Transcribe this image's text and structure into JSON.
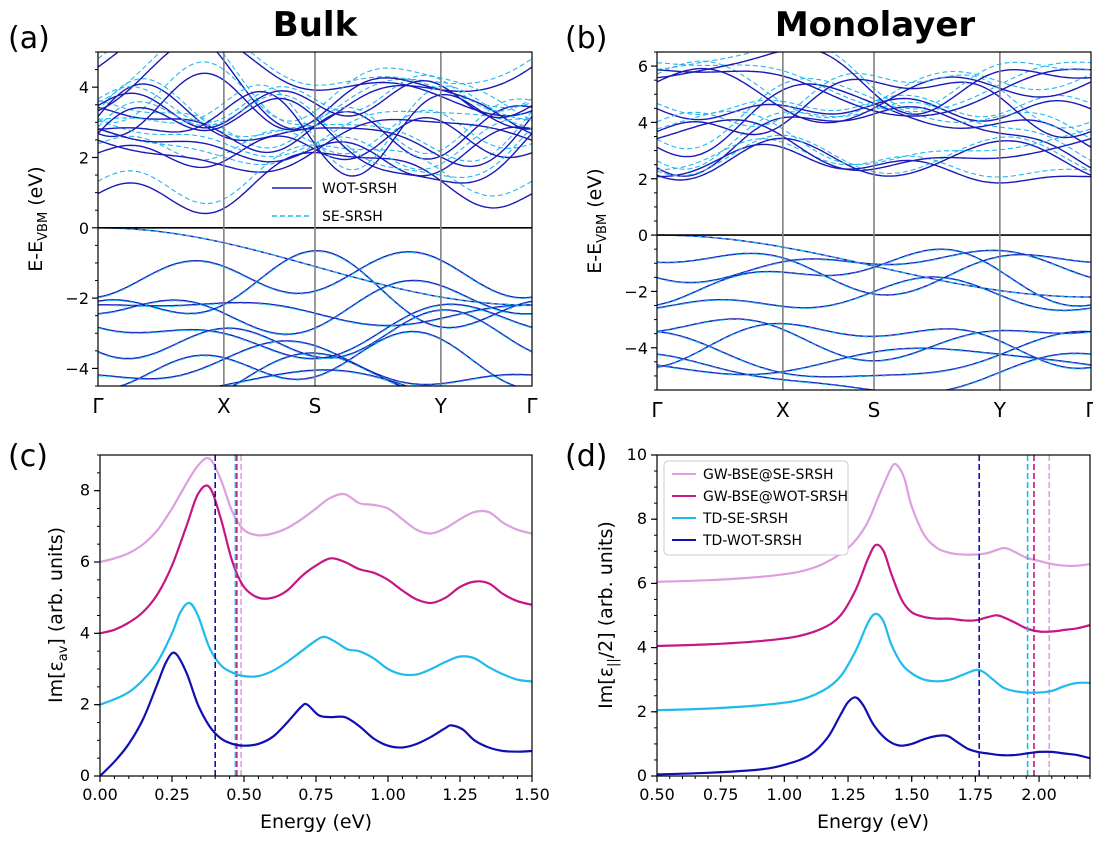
{
  "chart_data": [
    {
      "panel": "(a)",
      "type": "line",
      "title": "Bulk",
      "ylabel_main": "E-E",
      "ylabel_sub": "VBM",
      "ylabel_unit": " (eV)",
      "ylim": [
        -4.5,
        5
      ],
      "yticks": [
        4,
        2,
        0,
        -2,
        -4
      ],
      "yticklabels": [
        "4",
        "2",
        "0",
        "−2",
        "−4"
      ],
      "kpoints": [
        "Γ",
        "X",
        "S",
        "Y",
        "Γ"
      ],
      "kpos": [
        0,
        0.29,
        0.5,
        0.79,
        1.0
      ],
      "series": [
        {
          "name": "WOT-SRSH",
          "color": "#1a1ab8",
          "dash": "solid"
        },
        {
          "name": "SE-SRSH",
          "color": "#22b8ee",
          "dash": "dashed"
        }
      ],
      "legend": "center-right"
    },
    {
      "panel": "(b)",
      "type": "line",
      "title": "Monolayer",
      "ylabel_main": "E-E",
      "ylabel_sub": "VBM",
      "ylabel_unit": " (eV)",
      "ylim": [
        -5.5,
        6.5
      ],
      "yticks": [
        6,
        4,
        2,
        0,
        -2,
        -4
      ],
      "yticklabels": [
        "6",
        "4",
        "2",
        "0",
        "−2",
        "−4"
      ],
      "kpoints": [
        "Γ",
        "X",
        "S",
        "Y",
        "Γ"
      ],
      "kpos": [
        0,
        0.29,
        0.5,
        0.79,
        1.0
      ]
    },
    {
      "panel": "(c)",
      "type": "line",
      "xlabel": "Energy (eV)",
      "ylabel_main": "Im[ε",
      "ylabel_sub": "av",
      "ylabel_unit": "] (arb. units)",
      "xlim": [
        0,
        1.5
      ],
      "ylim": [
        0,
        9
      ],
      "xticks": [
        0,
        0.25,
        0.5,
        0.75,
        1.0,
        1.25,
        1.5
      ],
      "xticklabels": [
        "0.00",
        "0.25",
        "0.50",
        "0.75",
        "1.00",
        "1.25",
        "1.50"
      ],
      "yticks": [
        0,
        2,
        4,
        6,
        8
      ],
      "yticklabels": [
        "0",
        "2",
        "4",
        "6",
        "8"
      ],
      "series": [
        {
          "name": "GW-BSE@SE-SRSH",
          "color": "#dda0dd",
          "x": [
            0,
            0.05,
            0.1,
            0.15,
            0.2,
            0.25,
            0.3,
            0.34,
            0.38,
            0.42,
            0.46,
            0.5,
            0.55,
            0.6,
            0.65,
            0.7,
            0.75,
            0.8,
            0.85,
            0.9,
            0.95,
            1.0,
            1.05,
            1.1,
            1.15,
            1.2,
            1.25,
            1.3,
            1.35,
            1.4,
            1.45,
            1.5
          ],
          "y": [
            6.0,
            6.1,
            6.25,
            6.5,
            6.9,
            7.5,
            8.2,
            8.7,
            8.9,
            8.3,
            7.4,
            6.9,
            6.75,
            6.8,
            6.95,
            7.2,
            7.5,
            7.8,
            7.9,
            7.65,
            7.6,
            7.5,
            7.2,
            6.9,
            6.8,
            6.95,
            7.2,
            7.4,
            7.4,
            7.1,
            6.9,
            6.8
          ],
          "vline": 0.49
        },
        {
          "name": "GW-BSE@WOT-SRSH",
          "color": "#c71585",
          "x": [
            0,
            0.05,
            0.1,
            0.15,
            0.2,
            0.25,
            0.3,
            0.34,
            0.38,
            0.42,
            0.46,
            0.5,
            0.55,
            0.6,
            0.65,
            0.7,
            0.75,
            0.8,
            0.85,
            0.9,
            0.95,
            1.0,
            1.05,
            1.1,
            1.15,
            1.2,
            1.25,
            1.3,
            1.35,
            1.4,
            1.45,
            1.5
          ],
          "y": [
            4.0,
            4.1,
            4.3,
            4.6,
            5.1,
            5.9,
            7.0,
            7.9,
            8.1,
            7.2,
            6.0,
            5.3,
            5.0,
            5.0,
            5.2,
            5.6,
            5.9,
            6.1,
            6.0,
            5.8,
            5.7,
            5.5,
            5.2,
            4.95,
            4.85,
            5.0,
            5.3,
            5.45,
            5.4,
            5.1,
            4.9,
            4.8
          ],
          "vline": 0.475
        },
        {
          "name": "TD-SE-SRSH",
          "color": "#1fbbee",
          "x": [
            0,
            0.05,
            0.1,
            0.15,
            0.2,
            0.25,
            0.28,
            0.31,
            0.34,
            0.38,
            0.42,
            0.46,
            0.5,
            0.55,
            0.6,
            0.65,
            0.7,
            0.75,
            0.78,
            0.82,
            0.86,
            0.9,
            0.95,
            1.0,
            1.05,
            1.1,
            1.15,
            1.2,
            1.25,
            1.3,
            1.35,
            1.4,
            1.45,
            1.5
          ],
          "y": [
            2.0,
            2.15,
            2.35,
            2.7,
            3.2,
            4.0,
            4.6,
            4.85,
            4.5,
            3.6,
            3.1,
            2.9,
            2.8,
            2.8,
            2.95,
            3.2,
            3.5,
            3.8,
            3.9,
            3.75,
            3.55,
            3.5,
            3.3,
            3.0,
            2.85,
            2.85,
            3.0,
            3.2,
            3.35,
            3.3,
            3.05,
            2.85,
            2.7,
            2.65
          ],
          "vline": 0.47
        },
        {
          "name": "TD-WOT-SRSH",
          "color": "#1010b0",
          "x": [
            0,
            0.05,
            0.1,
            0.15,
            0.2,
            0.23,
            0.26,
            0.3,
            0.34,
            0.38,
            0.42,
            0.46,
            0.5,
            0.55,
            0.6,
            0.65,
            0.7,
            0.72,
            0.76,
            0.8,
            0.85,
            0.9,
            0.95,
            1.0,
            1.05,
            1.1,
            1.15,
            1.2,
            1.22,
            1.26,
            1.3,
            1.35,
            1.4,
            1.45,
            1.5
          ],
          "y": [
            0.0,
            0.4,
            0.9,
            1.6,
            2.6,
            3.2,
            3.45,
            2.9,
            2.0,
            1.4,
            1.05,
            0.9,
            0.85,
            0.9,
            1.1,
            1.5,
            1.95,
            2.0,
            1.7,
            1.65,
            1.65,
            1.4,
            1.05,
            0.85,
            0.8,
            0.9,
            1.1,
            1.35,
            1.42,
            1.3,
            1.0,
            0.8,
            0.7,
            0.68,
            0.7
          ],
          "vline": 0.4
        }
      ]
    },
    {
      "panel": "(d)",
      "type": "line",
      "xlabel": "Energy (eV)",
      "ylabel_main": "Im[ε",
      "ylabel_sub": "||",
      "ylabel_unit": "/2] (arb. units)",
      "xlim": [
        0.5,
        2.2
      ],
      "ylim": [
        0,
        10
      ],
      "xticks": [
        0.5,
        0.75,
        1.0,
        1.25,
        1.5,
        1.75,
        2.0
      ],
      "xticklabels": [
        "0.50",
        "0.75",
        "1.00",
        "1.25",
        "1.50",
        "1.75",
        "2.00"
      ],
      "yticks": [
        0,
        2,
        4,
        6,
        8,
        10
      ],
      "yticklabels": [
        "0",
        "2",
        "4",
        "6",
        "8",
        "10"
      ],
      "legend": "top-left",
      "series": [
        {
          "name": "GW-BSE@SE-SRSH",
          "color": "#dda0dd",
          "x": [
            0.5,
            0.7,
            0.9,
            1.05,
            1.15,
            1.25,
            1.32,
            1.38,
            1.42,
            1.44,
            1.47,
            1.5,
            1.55,
            1.6,
            1.65,
            1.7,
            1.75,
            1.8,
            1.86,
            1.9,
            1.95,
            2.0,
            2.05,
            2.1,
            2.15,
            2.2
          ],
          "y": [
            6.05,
            6.1,
            6.2,
            6.35,
            6.6,
            7.1,
            7.8,
            8.9,
            9.6,
            9.7,
            9.3,
            8.4,
            7.5,
            7.1,
            6.95,
            6.9,
            6.9,
            6.95,
            7.1,
            7.0,
            6.8,
            6.7,
            6.6,
            6.55,
            6.55,
            6.6
          ],
          "vline": 2.04
        },
        {
          "name": "GW-BSE@WOT-SRSH",
          "color": "#c71585",
          "x": [
            0.5,
            0.7,
            0.9,
            1.05,
            1.15,
            1.22,
            1.28,
            1.33,
            1.36,
            1.39,
            1.42,
            1.46,
            1.5,
            1.55,
            1.6,
            1.65,
            1.7,
            1.75,
            1.8,
            1.84,
            1.9,
            1.95,
            2.0,
            2.05,
            2.1,
            2.15,
            2.2
          ],
          "y": [
            4.05,
            4.1,
            4.2,
            4.35,
            4.6,
            5.0,
            5.8,
            6.8,
            7.2,
            7.0,
            6.3,
            5.5,
            5.1,
            4.95,
            4.9,
            4.9,
            4.85,
            4.85,
            4.95,
            5.0,
            4.8,
            4.6,
            4.5,
            4.5,
            4.55,
            4.6,
            4.7
          ],
          "vline": 1.98
        },
        {
          "name": "TD-SE-SRSH",
          "color": "#1fbbee",
          "x": [
            0.5,
            0.7,
            0.9,
            1.05,
            1.15,
            1.22,
            1.28,
            1.33,
            1.36,
            1.39,
            1.42,
            1.46,
            1.5,
            1.55,
            1.6,
            1.65,
            1.7,
            1.75,
            1.78,
            1.82,
            1.86,
            1.9,
            1.95,
            2.0,
            2.05,
            2.1,
            2.15,
            2.2
          ],
          "y": [
            2.05,
            2.1,
            2.2,
            2.35,
            2.65,
            3.1,
            3.9,
            4.8,
            5.05,
            4.8,
            4.1,
            3.5,
            3.2,
            3.0,
            2.95,
            3.0,
            3.15,
            3.3,
            3.25,
            3.0,
            2.75,
            2.65,
            2.6,
            2.6,
            2.65,
            2.8,
            2.9,
            2.9
          ],
          "vline": 1.955
        },
        {
          "name": "TD-WOT-SRSH",
          "color": "#1010b0",
          "x": [
            0.5,
            0.7,
            0.9,
            1.0,
            1.1,
            1.17,
            1.22,
            1.25,
            1.28,
            1.31,
            1.35,
            1.4,
            1.45,
            1.5,
            1.55,
            1.6,
            1.64,
            1.68,
            1.72,
            1.76,
            1.8,
            1.85,
            1.9,
            1.95,
            2.0,
            2.05,
            2.1,
            2.15,
            2.2
          ],
          "y": [
            0.05,
            0.1,
            0.2,
            0.35,
            0.65,
            1.2,
            1.9,
            2.3,
            2.45,
            2.2,
            1.6,
            1.15,
            0.95,
            1.0,
            1.15,
            1.25,
            1.25,
            1.05,
            0.85,
            0.75,
            0.7,
            0.65,
            0.65,
            0.7,
            0.75,
            0.75,
            0.7,
            0.65,
            0.55
          ],
          "vline": 1.765
        }
      ]
    }
  ]
}
